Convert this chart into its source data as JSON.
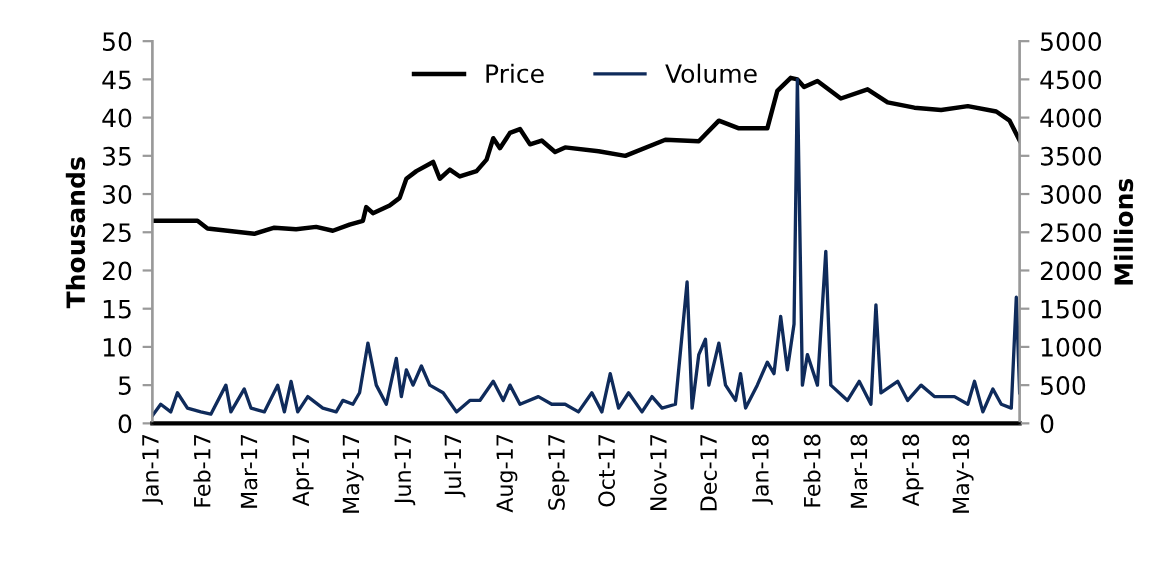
{
  "chart_data": {
    "type": "line",
    "ylabel": "Thousands",
    "y2label": "Millions",
    "legend": "top",
    "grid": false,
    "xlim": [
      "2017-01-01",
      "2018-06-04"
    ],
    "xticks": [
      {
        "value": "2017-01-01",
        "label": "Jan-17"
      },
      {
        "value": "2017-02-01",
        "label": "Feb-17"
      },
      {
        "value": "2017-03-01",
        "label": "Mar-17"
      },
      {
        "value": "2017-04-01",
        "label": "Apr-17"
      },
      {
        "value": "2017-05-01",
        "label": "May-17"
      },
      {
        "value": "2017-06-01",
        "label": "Jun-17"
      },
      {
        "value": "2017-07-01",
        "label": "Jul-17"
      },
      {
        "value": "2017-08-01",
        "label": "Aug-17"
      },
      {
        "value": "2017-09-01",
        "label": "Sep-17"
      },
      {
        "value": "2017-10-01",
        "label": "Oct-17"
      },
      {
        "value": "2017-11-01",
        "label": "Nov-17"
      },
      {
        "value": "2017-12-01",
        "label": "Dec-17"
      },
      {
        "value": "2018-01-01",
        "label": "Jan-18"
      },
      {
        "value": "2018-02-01",
        "label": "Feb-18"
      },
      {
        "value": "2018-03-01",
        "label": "Mar-18"
      },
      {
        "value": "2018-04-01",
        "label": "Apr-18"
      },
      {
        "value": "2018-05-01",
        "label": "May-18"
      }
    ],
    "ylim": [
      0,
      50
    ],
    "yticks": [
      0,
      5,
      10,
      15,
      20,
      25,
      30,
      35,
      40,
      45,
      50
    ],
    "y2lim": [
      0,
      5000
    ],
    "y2ticks": [
      0,
      500,
      1000,
      1500,
      2000,
      2500,
      3000,
      3500,
      4000,
      4500,
      5000
    ],
    "series": [
      {
        "name": "Price",
        "color": "#000000",
        "x": [
          "2017-01-01",
          "2017-01-28",
          "2017-02-03",
          "2017-02-15",
          "2017-03-03",
          "2017-03-15",
          "2017-03-28",
          "2017-04-09",
          "2017-04-19",
          "2017-04-29",
          "2017-05-07",
          "2017-05-09",
          "2017-05-13",
          "2017-05-23",
          "2017-05-29",
          "2017-06-02",
          "2017-06-08",
          "2017-06-18",
          "2017-06-22",
          "2017-06-28",
          "2017-07-04",
          "2017-07-14",
          "2017-07-20",
          "2017-07-24",
          "2017-07-28",
          "2017-08-03",
          "2017-08-09",
          "2017-08-15",
          "2017-08-22",
          "2017-08-30",
          "2017-09-05",
          "2017-09-25",
          "2017-10-11",
          "2017-11-04",
          "2017-11-24",
          "2017-12-06",
          "2017-12-18",
          "2018-01-04",
          "2018-01-10",
          "2018-01-18",
          "2018-01-22",
          "2018-01-26",
          "2018-02-03",
          "2018-02-17",
          "2018-03-05",
          "2018-03-17",
          "2018-04-02",
          "2018-04-18",
          "2018-05-04",
          "2018-05-21",
          "2018-05-29",
          "2018-06-04"
        ],
        "values": [
          26.5,
          26.5,
          25.5,
          25.2,
          24.8,
          25.6,
          25.4,
          25.7,
          25.2,
          26,
          26.5,
          28.3,
          27.5,
          28.5,
          29.5,
          32,
          33,
          34.2,
          32,
          33.2,
          32.3,
          33,
          34.5,
          37.3,
          36,
          38,
          38.5,
          36.5,
          37,
          35.5,
          36.1,
          35.6,
          35,
          37.1,
          36.9,
          39.6,
          38.6,
          38.6,
          43.5,
          45.2,
          45,
          44,
          44.8,
          42.5,
          43.7,
          42,
          41.3,
          41,
          41.5,
          40.8,
          39.6,
          37
        ]
      },
      {
        "name": "Volume",
        "color": "#0f2b5b",
        "axis": "y2",
        "x": [
          "2017-01-01",
          "2017-01-06",
          "2017-01-12",
          "2017-01-16",
          "2017-01-22",
          "2017-01-30",
          "2017-02-05",
          "2017-02-14",
          "2017-02-17",
          "2017-02-25",
          "2017-03-01",
          "2017-03-09",
          "2017-03-17",
          "2017-03-21",
          "2017-03-25",
          "2017-03-29",
          "2017-04-04",
          "2017-04-13",
          "2017-04-21",
          "2017-04-25",
          "2017-05-01",
          "2017-05-05",
          "2017-05-10",
          "2017-05-15",
          "2017-05-21",
          "2017-05-27",
          "2017-05-30",
          "2017-06-02",
          "2017-06-06",
          "2017-06-11",
          "2017-06-16",
          "2017-06-24",
          "2017-07-02",
          "2017-07-10",
          "2017-07-16",
          "2017-07-24",
          "2017-07-30",
          "2017-08-03",
          "2017-08-09",
          "2017-08-20",
          "2017-08-28",
          "2017-09-05",
          "2017-09-13",
          "2017-09-21",
          "2017-09-27",
          "2017-10-02",
          "2017-10-07",
          "2017-10-13",
          "2017-10-21",
          "2017-10-27",
          "2017-11-02",
          "2017-11-10",
          "2017-11-17",
          "2017-11-20",
          "2017-11-24",
          "2017-11-28",
          "2017-11-30",
          "2017-12-06",
          "2017-12-10",
          "2017-12-16",
          "2017-12-19",
          "2017-12-22",
          "2017-12-29",
          "2018-01-04",
          "2018-01-08",
          "2018-01-12",
          "2018-01-16",
          "2018-01-20",
          "2018-01-22",
          "2018-01-25",
          "2018-01-28",
          "2018-02-03",
          "2018-02-08",
          "2018-02-11",
          "2018-02-21",
          "2018-02-28",
          "2018-03-07",
          "2018-03-10",
          "2018-03-13",
          "2018-03-23",
          "2018-03-29",
          "2018-04-06",
          "2018-04-14",
          "2018-04-26",
          "2018-05-04",
          "2018-05-08",
          "2018-05-13",
          "2018-05-19",
          "2018-05-24",
          "2018-05-30",
          "2018-06-02",
          "2018-06-04"
        ],
        "values": [
          100,
          250,
          150,
          400,
          200,
          150,
          120,
          500,
          150,
          450,
          200,
          150,
          500,
          150,
          550,
          150,
          350,
          200,
          150,
          300,
          250,
          400,
          1050,
          500,
          250,
          850,
          350,
          700,
          500,
          750,
          500,
          400,
          150,
          300,
          300,
          550,
          300,
          500,
          250,
          350,
          250,
          250,
          150,
          400,
          150,
          650,
          200,
          400,
          150,
          350,
          200,
          250,
          1850,
          200,
          900,
          1100,
          500,
          1050,
          500,
          300,
          650,
          200,
          500,
          800,
          650,
          1400,
          700,
          1300,
          4500,
          500,
          900,
          500,
          2250,
          500,
          300,
          550,
          250,
          1550,
          400,
          550,
          300,
          500,
          350,
          350,
          250,
          550,
          150,
          450,
          250,
          200,
          1650,
          400
        ]
      }
    ]
  }
}
